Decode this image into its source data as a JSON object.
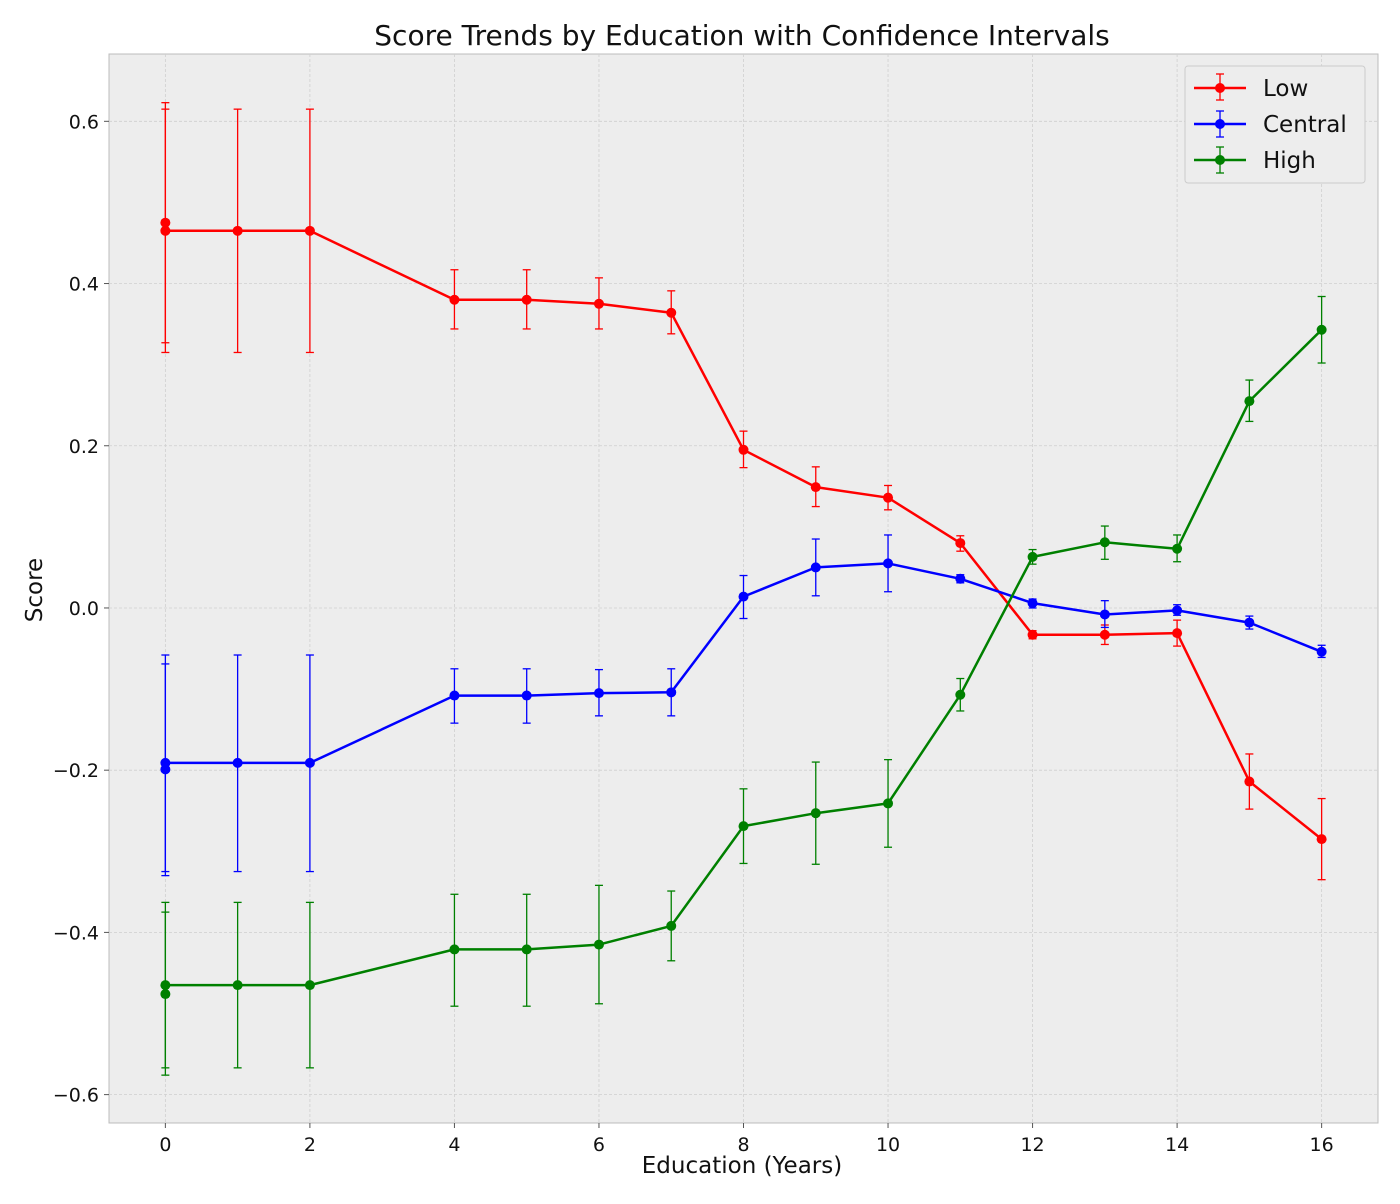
{
  "chart_data": {
    "type": "line",
    "title": "Score Trends by Education with Confidence Intervals",
    "xlabel": "Education (Years)",
    "ylabel": "Score",
    "xlim": [
      -0.78,
      16.78
    ],
    "ylim": [
      -0.635,
      0.683
    ],
    "x_ticks": [
      0,
      2,
      4,
      6,
      8,
      10,
      12,
      14,
      16
    ],
    "x_tick_labels": [
      "0",
      "2",
      "4",
      "6",
      "8",
      "10",
      "12",
      "14",
      "16"
    ],
    "y_ticks": [
      -0.6,
      -0.4,
      -0.2,
      0.0,
      0.2,
      0.4,
      0.6
    ],
    "y_tick_labels": [
      "−0.6",
      "−0.4",
      "−0.2",
      "0.0",
      "0.2",
      "0.4",
      "0.6"
    ],
    "grid": true,
    "legend_position": "top-right",
    "series": [
      {
        "name": "Low",
        "color": "#ff0000",
        "points": [
          {
            "x": 0,
            "y": 0.475,
            "lo": 0.327,
            "hi": 0.623
          },
          {
            "x": 0,
            "y": 0.465,
            "lo": 0.315,
            "hi": 0.615
          },
          {
            "x": 1,
            "y": 0.465,
            "lo": 0.315,
            "hi": 0.615
          },
          {
            "x": 2,
            "y": 0.465,
            "lo": 0.315,
            "hi": 0.615
          },
          {
            "x": 4,
            "y": 0.38,
            "lo": 0.344,
            "hi": 0.417
          },
          {
            "x": 5,
            "y": 0.38,
            "lo": 0.344,
            "hi": 0.417
          },
          {
            "x": 6,
            "y": 0.375,
            "lo": 0.344,
            "hi": 0.407
          },
          {
            "x": 7,
            "y": 0.364,
            "lo": 0.338,
            "hi": 0.391
          },
          {
            "x": 8,
            "y": 0.195,
            "lo": 0.173,
            "hi": 0.218
          },
          {
            "x": 9,
            "y": 0.149,
            "lo": 0.125,
            "hi": 0.174
          },
          {
            "x": 10,
            "y": 0.136,
            "lo": 0.121,
            "hi": 0.151
          },
          {
            "x": 11,
            "y": 0.08,
            "lo": 0.07,
            "hi": 0.089
          },
          {
            "x": 12,
            "y": -0.033,
            "lo": -0.038,
            "hi": -0.028
          },
          {
            "x": 13,
            "y": -0.033,
            "lo": -0.045,
            "hi": -0.021
          },
          {
            "x": 14,
            "y": -0.031,
            "lo": -0.047,
            "hi": -0.015
          },
          {
            "x": 15,
            "y": -0.214,
            "lo": -0.248,
            "hi": -0.18
          },
          {
            "x": 16,
            "y": -0.285,
            "lo": -0.335,
            "hi": -0.235
          }
        ]
      },
      {
        "name": "Central",
        "color": "#0000ff",
        "points": [
          {
            "x": 0,
            "y": -0.199,
            "lo": -0.33,
            "hi": -0.069
          },
          {
            "x": 0,
            "y": -0.191,
            "lo": -0.325,
            "hi": -0.058
          },
          {
            "x": 1,
            "y": -0.191,
            "lo": -0.325,
            "hi": -0.058
          },
          {
            "x": 2,
            "y": -0.191,
            "lo": -0.325,
            "hi": -0.058
          },
          {
            "x": 4,
            "y": -0.108,
            "lo": -0.142,
            "hi": -0.075
          },
          {
            "x": 5,
            "y": -0.108,
            "lo": -0.142,
            "hi": -0.075
          },
          {
            "x": 6,
            "y": -0.105,
            "lo": -0.133,
            "hi": -0.076
          },
          {
            "x": 7,
            "y": -0.104,
            "lo": -0.133,
            "hi": -0.075
          },
          {
            "x": 8,
            "y": 0.014,
            "lo": -0.013,
            "hi": 0.04
          },
          {
            "x": 9,
            "y": 0.05,
            "lo": 0.015,
            "hi": 0.085
          },
          {
            "x": 10,
            "y": 0.055,
            "lo": 0.02,
            "hi": 0.09
          },
          {
            "x": 11,
            "y": 0.036,
            "lo": 0.031,
            "hi": 0.041
          },
          {
            "x": 12,
            "y": 0.006,
            "lo": 0.0,
            "hi": 0.011
          },
          {
            "x": 13,
            "y": -0.008,
            "lo": -0.024,
            "hi": 0.009
          },
          {
            "x": 14,
            "y": -0.003,
            "lo": -0.009,
            "hi": 0.004
          },
          {
            "x": 15,
            "y": -0.018,
            "lo": -0.026,
            "hi": -0.01
          },
          {
            "x": 16,
            "y": -0.054,
            "lo": -0.061,
            "hi": -0.046
          }
        ]
      },
      {
        "name": "High",
        "color": "#008000",
        "points": [
          {
            "x": 0,
            "y": -0.476,
            "lo": -0.576,
            "hi": -0.375
          },
          {
            "x": 0,
            "y": -0.465,
            "lo": -0.567,
            "hi": -0.363
          },
          {
            "x": 1,
            "y": -0.465,
            "lo": -0.567,
            "hi": -0.363
          },
          {
            "x": 2,
            "y": -0.465,
            "lo": -0.567,
            "hi": -0.363
          },
          {
            "x": 4,
            "y": -0.421,
            "lo": -0.491,
            "hi": -0.353
          },
          {
            "x": 5,
            "y": -0.421,
            "lo": -0.491,
            "hi": -0.353
          },
          {
            "x": 6,
            "y": -0.415,
            "lo": -0.488,
            "hi": -0.342
          },
          {
            "x": 7,
            "y": -0.392,
            "lo": -0.435,
            "hi": -0.349
          },
          {
            "x": 8,
            "y": -0.269,
            "lo": -0.315,
            "hi": -0.223
          },
          {
            "x": 9,
            "y": -0.253,
            "lo": -0.316,
            "hi": -0.19
          },
          {
            "x": 10,
            "y": -0.241,
            "lo": -0.295,
            "hi": -0.187
          },
          {
            "x": 11,
            "y": -0.107,
            "lo": -0.127,
            "hi": -0.087
          },
          {
            "x": 12,
            "y": 0.063,
            "lo": 0.054,
            "hi": 0.072
          },
          {
            "x": 13,
            "y": 0.081,
            "lo": 0.06,
            "hi": 0.101
          },
          {
            "x": 14,
            "y": 0.073,
            "lo": 0.057,
            "hi": 0.09
          },
          {
            "x": 15,
            "y": 0.255,
            "lo": 0.23,
            "hi": 0.281
          },
          {
            "x": 16,
            "y": 0.343,
            "lo": 0.302,
            "hi": 0.384
          }
        ]
      }
    ]
  }
}
